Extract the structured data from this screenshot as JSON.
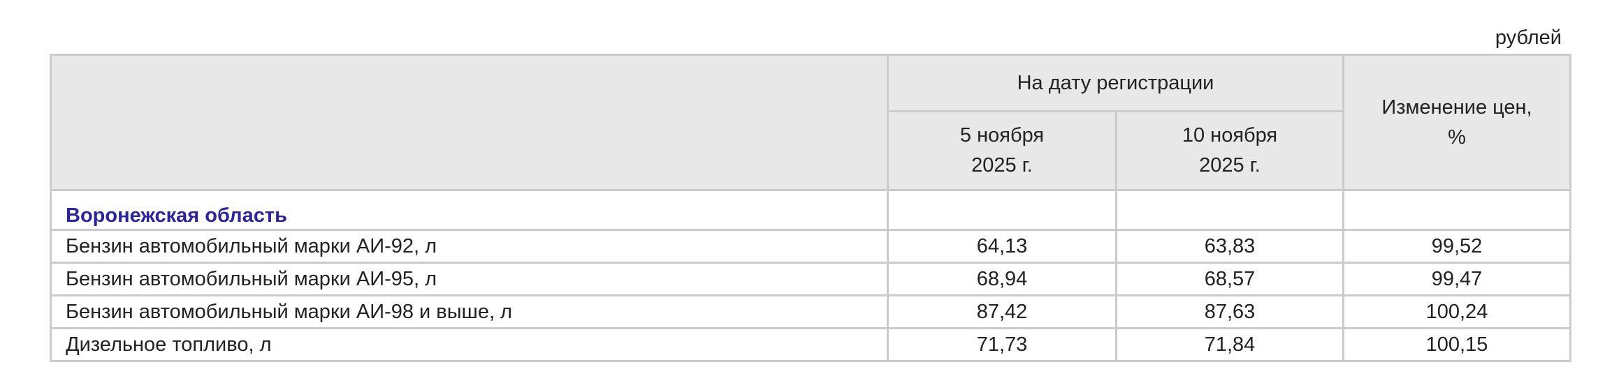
{
  "unit_label": "рублей",
  "header": {
    "group_label": "На дату регистрации",
    "date1": [
      "5 ноября",
      "2025 г."
    ],
    "date2": [
      "10 ноября",
      "2025 г."
    ],
    "change": [
      "Изменение цен,",
      "%"
    ]
  },
  "region": "Воронежская область",
  "rows": [
    {
      "name": "Бензин автомобильный марки АИ-92, л",
      "v1": "64,13",
      "v2": "63,83",
      "change": "99,52"
    },
    {
      "name": "Бензин автомобильный марки АИ-95, л",
      "v1": "68,94",
      "v2": "68,57",
      "change": "99,47"
    },
    {
      "name": "Бензин автомобильный марки АИ-98 и выше, л",
      "v1": "87,42",
      "v2": "87,63",
      "change": "100,24"
    },
    {
      "name": "Дизельное топливо, л",
      "v1": "71,73",
      "v2": "71,84",
      "change": "100,15"
    }
  ]
}
